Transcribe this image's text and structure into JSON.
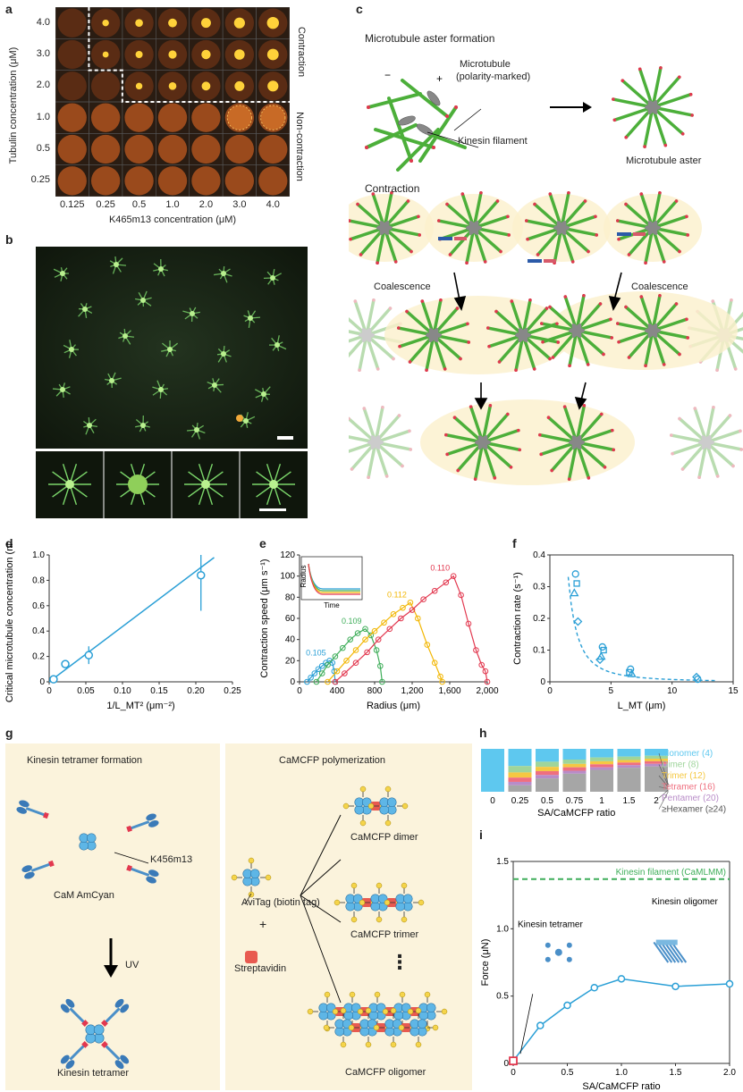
{
  "panels": {
    "a": "a",
    "b": "b",
    "c": "c",
    "d": "d",
    "e": "e",
    "f": "f",
    "g": "g",
    "h": "h",
    "i": "i"
  },
  "panel_a": {
    "ylabel": "Tubulin concentration (μM)",
    "xlabel": "K465m13 concentration (μM)",
    "rows": [
      "4.0",
      "3.0",
      "2.0",
      "1.0",
      "0.5",
      "0.25"
    ],
    "cols": [
      "0.125",
      "0.25",
      "0.5",
      "1.0",
      "2.0",
      "3.0",
      "4.0"
    ],
    "contraction": "Contraction",
    "noncontraction": "Non-contraction"
  },
  "panel_c": {
    "title1": "Microtubule aster formation",
    "mt_label1": "Microtubule",
    "mt_label2": "(polarity-marked)",
    "kinesin": "Kinesin filament",
    "aster": "Microtubule aster",
    "title2": "Contraction",
    "coalescence": "Coalescence",
    "plus": "+",
    "minus": "−"
  },
  "panel_g": {
    "left_title": "Kinesin tetramer formation",
    "k_label": "K456m13",
    "cam": "CaM AmCyan",
    "uv": "UV",
    "tetramer": "Kinesin tetramer",
    "right_title": "CaMCFP polymerization",
    "avitag": "AviTag (biotin tag)",
    "plus": "+",
    "strep": "Streptavidin",
    "dimer": "CaMCFP dimer",
    "trimer": "CaMCFP trimer",
    "dots": "⋮",
    "oligomer": "CaMCFP oligomer"
  },
  "chart_data": [
    {
      "id": "d",
      "type": "scatter",
      "xlabel": "1/L_MT² (μm⁻²)",
      "ylabel": "Critical microtubule concentration (nM)",
      "xlim": [
        0,
        0.25
      ],
      "ylim": [
        0,
        1.0
      ],
      "xticks": [
        "0",
        "0.05",
        "0.10",
        "0.15",
        "0.20",
        "0.25"
      ],
      "yticks": [
        "0",
        "0.2",
        "0.4",
        "0.6",
        "0.8",
        "1.0"
      ],
      "points": [
        {
          "x": 0.006,
          "y": 0.02,
          "err": 0.01
        },
        {
          "x": 0.022,
          "y": 0.14,
          "err": 0.03
        },
        {
          "x": 0.054,
          "y": 0.21,
          "err": 0.07
        },
        {
          "x": 0.207,
          "y": 0.84,
          "err": 0.28
        }
      ],
      "fit": [
        [
          0.0,
          0.0
        ],
        [
          0.225,
          0.98
        ]
      ],
      "color": "#2a9fd6"
    },
    {
      "id": "e",
      "type": "line",
      "xlabel": "Radius (μm)",
      "ylabel": "Contraction speed (μm s⁻¹)",
      "xlim": [
        0,
        2000
      ],
      "ylim": [
        0,
        120
      ],
      "xticks": [
        "0",
        "400",
        "800",
        "1,200",
        "1,600",
        "2,000"
      ],
      "yticks": [
        "0",
        "20",
        "40",
        "60",
        "80",
        "100",
        "120"
      ],
      "inset": {
        "ylabel": "Radius",
        "xlabel": "Time"
      },
      "series": [
        {
          "name": "0.105",
          "color": "#2a9fd6",
          "label": "0.105",
          "points": [
            [
              80,
              0
            ],
            [
              120,
              4
            ],
            [
              160,
              8
            ],
            [
              200,
              12
            ],
            [
              240,
              15
            ],
            [
              280,
              18
            ],
            [
              320,
              20
            ],
            [
              350,
              18
            ],
            [
              370,
              10
            ],
            [
              380,
              0
            ]
          ]
        },
        {
          "name": "0.109",
          "color": "#3fae5a",
          "label": "0.109",
          "points": [
            [
              180,
              0
            ],
            [
              240,
              8
            ],
            [
              300,
              16
            ],
            [
              380,
              24
            ],
            [
              460,
              32
            ],
            [
              540,
              40
            ],
            [
              620,
              46
            ],
            [
              700,
              50
            ],
            [
              760,
              44
            ],
            [
              820,
              30
            ],
            [
              860,
              15
            ],
            [
              880,
              0
            ]
          ]
        },
        {
          "name": "0.112",
          "color": "#f2b705",
          "label": "0.112",
          "points": [
            [
              300,
              0
            ],
            [
              400,
              10
            ],
            [
              500,
              20
            ],
            [
              600,
              30
            ],
            [
              700,
              40
            ],
            [
              800,
              48
            ],
            [
              900,
              56
            ],
            [
              1000,
              64
            ],
            [
              1100,
              70
            ],
            [
              1180,
              75
            ],
            [
              1260,
              60
            ],
            [
              1360,
              35
            ],
            [
              1440,
              18
            ],
            [
              1500,
              5
            ],
            [
              1520,
              0
            ]
          ]
        },
        {
          "name": "0.110",
          "color": "#e2384f",
          "label": "0.110",
          "points": [
            [
              380,
              0
            ],
            [
              480,
              8
            ],
            [
              600,
              18
            ],
            [
              720,
              28
            ],
            [
              840,
              40
            ],
            [
              960,
              50
            ],
            [
              1080,
              60
            ],
            [
              1200,
              68
            ],
            [
              1320,
              78
            ],
            [
              1440,
              86
            ],
            [
              1560,
              94
            ],
            [
              1640,
              100
            ],
            [
              1720,
              82
            ],
            [
              1800,
              55
            ],
            [
              1880,
              30
            ],
            [
              1940,
              16
            ],
            [
              1980,
              10
            ],
            [
              2000,
              0
            ]
          ]
        }
      ]
    },
    {
      "id": "f",
      "type": "scatter",
      "xlabel": "L_MT (μm)",
      "ylabel": "Contraction rate (s⁻¹)",
      "xlim": [
        0,
        15
      ],
      "ylim": [
        0,
        0.4
      ],
      "xticks": [
        "0",
        "5",
        "10",
        "15"
      ],
      "yticks": [
        "0",
        "0.1",
        "0.2",
        "0.3",
        "0.4"
      ],
      "points": [
        {
          "x": 2.1,
          "y": 0.34
        },
        {
          "x": 2.2,
          "y": 0.31
        },
        {
          "x": 2.0,
          "y": 0.28
        },
        {
          "x": 2.3,
          "y": 0.19
        },
        {
          "x": 4.3,
          "y": 0.11
        },
        {
          "x": 4.4,
          "y": 0.1
        },
        {
          "x": 4.2,
          "y": 0.08
        },
        {
          "x": 4.1,
          "y": 0.07
        },
        {
          "x": 6.6,
          "y": 0.04
        },
        {
          "x": 6.5,
          "y": 0.03
        },
        {
          "x": 6.7,
          "y": 0.025
        },
        {
          "x": 12,
          "y": 0.015
        },
        {
          "x": 12.1,
          "y": 0.008
        }
      ],
      "color": "#2a9fd6"
    },
    {
      "id": "h",
      "type": "bar",
      "xlabel": "SA/CaMCFP ratio",
      "categories": [
        "0",
        "0.25",
        "0.5",
        "0.75",
        "1",
        "1.5",
        "2"
      ],
      "series": [
        {
          "name": "Monomer (4)",
          "color": "#5ec8ef",
          "values": [
            100,
            40,
            30,
            25,
            20,
            18,
            16
          ]
        },
        {
          "name": "Dimer (8)",
          "color": "#9fd59b",
          "values": [
            0,
            15,
            12,
            10,
            9,
            8,
            7
          ]
        },
        {
          "name": "Trimer (12)",
          "color": "#f5c842",
          "values": [
            0,
            12,
            10,
            8,
            7,
            6,
            6
          ]
        },
        {
          "name": "Tetramer (16)",
          "color": "#ef6f7f",
          "values": [
            0,
            10,
            9,
            8,
            7,
            6,
            6
          ]
        },
        {
          "name": "Pentamer (20)",
          "color": "#b88cc8",
          "values": [
            0,
            8,
            8,
            7,
            6,
            6,
            6
          ]
        },
        {
          "name": "≥Hexamer (≥24)",
          "color": "#a6a6a6",
          "values": [
            0,
            15,
            31,
            42,
            51,
            56,
            59
          ]
        }
      ]
    },
    {
      "id": "i",
      "type": "line",
      "xlabel": "SA/CaMCFP ratio",
      "ylabel": "Force (μN)",
      "xlim": [
        0,
        2.0
      ],
      "ylim": [
        0,
        1.6
      ],
      "xticks": [
        "0",
        "0.5",
        "1.0",
        "1.5",
        "2.0"
      ],
      "yticks": [
        "0",
        "0.5",
        "1.0",
        "1.5"
      ],
      "filament_label": "Kinesin filament (CaMLMM)",
      "filament_value": 1.46,
      "tetramer_label": "Kinesin tetramer",
      "oligomer_label": "Kinesin oligomer",
      "points": [
        {
          "x": 0,
          "y": 0.02
        },
        {
          "x": 0.25,
          "y": 0.3
        },
        {
          "x": 0.5,
          "y": 0.46
        },
        {
          "x": 0.75,
          "y": 0.6
        },
        {
          "x": 1.0,
          "y": 0.67
        },
        {
          "x": 1.5,
          "y": 0.61
        },
        {
          "x": 2.0,
          "y": 0.63
        }
      ],
      "color": "#2a9fd6"
    }
  ]
}
